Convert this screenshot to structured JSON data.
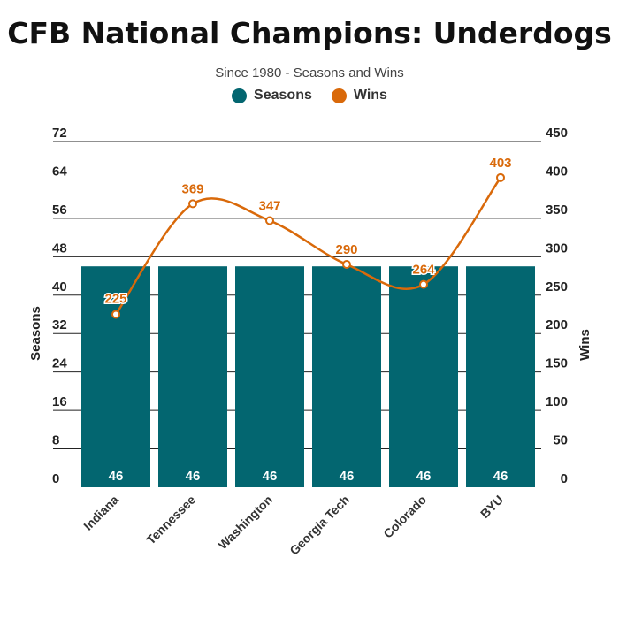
{
  "chart_data": {
    "type": "bar",
    "title": "CFB National Champions: Underdogs",
    "subtitle": "Since 1980 - Seasons and Wins",
    "categories": [
      "Indiana",
      "Tennessee",
      "Washington",
      "Georgia Tech",
      "Colorado",
      "BYU"
    ],
    "series": [
      {
        "name": "Seasons",
        "type": "bar",
        "axis": "left",
        "values": [
          46,
          46,
          46,
          46,
          46,
          46
        ]
      },
      {
        "name": "Wins",
        "type": "line",
        "axis": "right",
        "values": [
          225,
          369,
          347,
          290,
          264,
          403
        ]
      }
    ],
    "y_left": {
      "label": "Seasons",
      "ylim": [
        0,
        72
      ],
      "ticks": [
        "0",
        "8",
        "16",
        "24",
        "32",
        "40",
        "48",
        "56",
        "64",
        "72"
      ]
    },
    "y_right": {
      "label": "Wins",
      "ylim": [
        0,
        450
      ],
      "ticks": [
        "0",
        "50",
        "100",
        "150",
        "200",
        "250",
        "300",
        "350",
        "400",
        "450"
      ]
    },
    "legend": "top-center",
    "grid": true,
    "colors": {
      "seasons": "#036670",
      "wins": "#d9690a"
    }
  }
}
